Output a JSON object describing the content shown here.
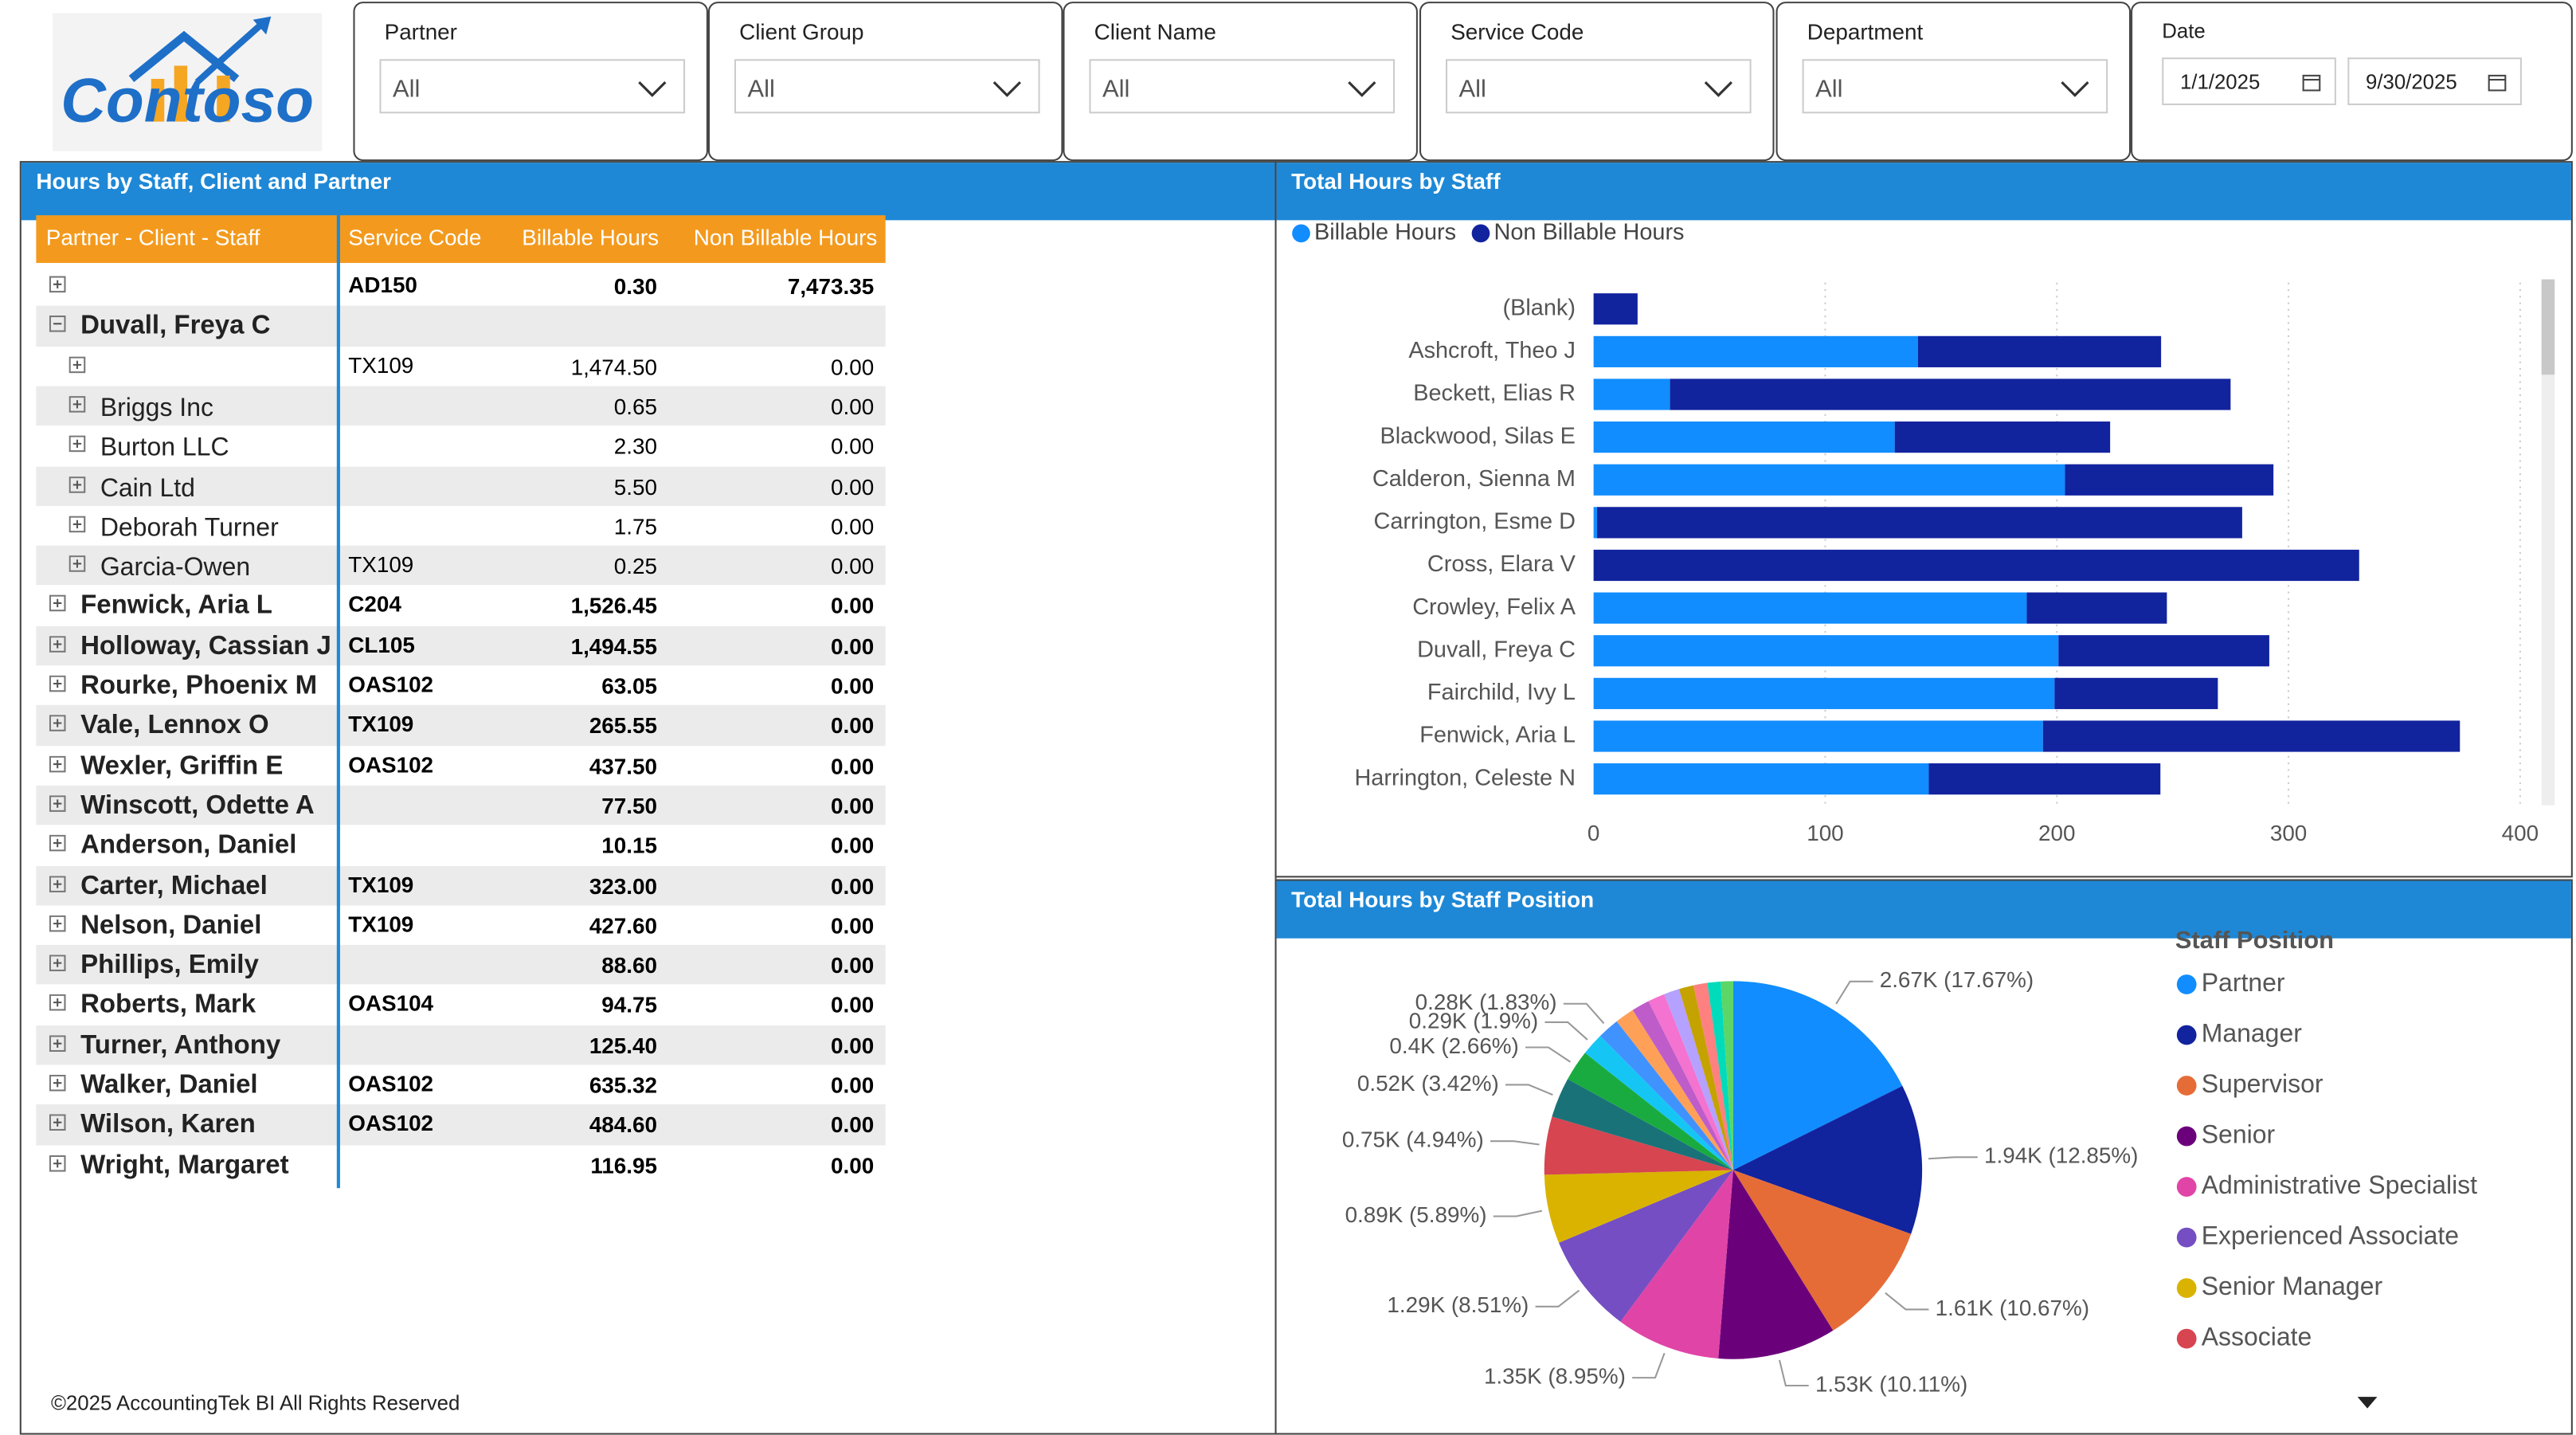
{
  "logo": "Contoso",
  "filters": [
    {
      "label": "Partner",
      "value": "All"
    },
    {
      "label": "Client Group",
      "value": "All"
    },
    {
      "label": "Client Name",
      "value": "All"
    },
    {
      "label": "Service Code",
      "value": "All"
    },
    {
      "label": "Department",
      "value": "All"
    }
  ],
  "date_filter": {
    "label": "Date",
    "start": "1/1/2025",
    "end": "9/30/2025"
  },
  "table": {
    "title": "Hours by Staff, Client and Partner",
    "columns": [
      "Partner - Client - Staff",
      "Service Code",
      "Billable Hours",
      "Non Billable Hours"
    ],
    "rows": [
      {
        "level": 0,
        "expanded": false,
        "service_code": "AD150",
        "billable": "0.30",
        "non_billable": "7,473.35"
      },
      {
        "level": 0,
        "expanded": true,
        "name": "Duvall, Freya C"
      },
      {
        "level": 1,
        "expanded": false,
        "service_code": "TX109",
        "billable": "1,474.50",
        "non_billable": "0.00"
      },
      {
        "level": 1,
        "expanded": false,
        "name": "Briggs Inc",
        "billable": "0.65",
        "non_billable": "0.00"
      },
      {
        "level": 1,
        "expanded": false,
        "name": "Burton LLC",
        "billable": "2.30",
        "non_billable": "0.00"
      },
      {
        "level": 1,
        "expanded": false,
        "name": "Cain Ltd",
        "billable": "5.50",
        "non_billable": "0.00"
      },
      {
        "level": 1,
        "expanded": false,
        "name": "Deborah Turner",
        "billable": "1.75",
        "non_billable": "0.00"
      },
      {
        "level": 1,
        "expanded": false,
        "name": "Garcia-Owen",
        "service_code": "TX109",
        "billable": "0.25",
        "non_billable": "0.00"
      },
      {
        "level": 0,
        "expanded": false,
        "name": "Fenwick, Aria L",
        "service_code": "C204",
        "billable": "1,526.45",
        "non_billable": "0.00"
      },
      {
        "level": 0,
        "expanded": false,
        "name": "Holloway, Cassian J",
        "service_code": "CL105",
        "billable": "1,494.55",
        "non_billable": "0.00"
      },
      {
        "level": 0,
        "expanded": false,
        "name": "Rourke, Phoenix M",
        "service_code": "OAS102",
        "billable": "63.05",
        "non_billable": "0.00"
      },
      {
        "level": 0,
        "expanded": false,
        "name": "Vale, Lennox O",
        "service_code": "TX109",
        "billable": "265.55",
        "non_billable": "0.00"
      },
      {
        "level": 0,
        "expanded": false,
        "name": "Wexler, Griffin E",
        "service_code": "OAS102",
        "billable": "437.50",
        "non_billable": "0.00"
      },
      {
        "level": 0,
        "expanded": false,
        "name": "Winscott, Odette A",
        "billable": "77.50",
        "non_billable": "0.00"
      },
      {
        "level": 0,
        "expanded": false,
        "name": "Anderson, Daniel",
        "billable": "10.15",
        "non_billable": "0.00"
      },
      {
        "level": 0,
        "expanded": false,
        "name": "Carter, Michael",
        "service_code": "TX109",
        "billable": "323.00",
        "non_billable": "0.00"
      },
      {
        "level": 0,
        "expanded": false,
        "name": "Nelson, Daniel",
        "service_code": "TX109",
        "billable": "427.60",
        "non_billable": "0.00"
      },
      {
        "level": 0,
        "expanded": false,
        "name": "Phillips, Emily",
        "billable": "88.60",
        "non_billable": "0.00"
      },
      {
        "level": 0,
        "expanded": false,
        "name": "Roberts, Mark",
        "service_code": "OAS104",
        "billable": "94.75",
        "non_billable": "0.00"
      },
      {
        "level": 0,
        "expanded": false,
        "name": "Turner, Anthony",
        "billable": "125.40",
        "non_billable": "0.00"
      },
      {
        "level": 0,
        "expanded": false,
        "name": "Walker, Daniel",
        "service_code": "OAS102",
        "billable": "635.32",
        "non_billable": "0.00"
      },
      {
        "level": 0,
        "expanded": false,
        "name": "Wilson, Karen",
        "service_code": "OAS102",
        "billable": "484.60",
        "non_billable": "0.00"
      },
      {
        "level": 0,
        "expanded": false,
        "name": "Wright, Margaret",
        "billable": "116.95",
        "non_billable": "0.00"
      }
    ]
  },
  "footer": "©2025 AccountingTek BI All Rights Reserved",
  "chart_data": [
    {
      "type": "bar",
      "orientation": "horizontal",
      "stacked": true,
      "title": "Total Hours by Staff",
      "categories": [
        "(Blank)",
        "Ashcroft, Theo J",
        "Beckett, Elias R",
        "Blackwood, Silas E",
        "Calderon, Sienna M",
        "Carrington, Esme D",
        "Cross, Elara V",
        "Crowley, Felix A",
        "Duvall, Freya C",
        "Fairchild, Ivy L",
        "Fenwick, Aria L",
        "Harrington, Celeste N"
      ],
      "series": [
        {
          "name": "Billable Hours",
          "color": "#118DFF",
          "values": [
            0,
            140,
            33,
            130,
            203.5,
            1.5,
            0,
            187,
            200.7,
            199,
            194,
            144.7
          ]
        },
        {
          "name": "Non Billable Hours",
          "color": "#12239E",
          "values": [
            19,
            105,
            242,
            93,
            90,
            278.5,
            330.5,
            60.5,
            91,
            70.5,
            180,
            100
          ]
        }
      ],
      "xlim": [
        0,
        400
      ],
      "xticks": [
        0,
        100,
        200,
        300,
        400
      ],
      "grid": true,
      "legend": "top-left"
    },
    {
      "type": "pie",
      "title": "Total Hours by Staff Position",
      "legend_title": "Staff Position",
      "categories": [
        "Partner",
        "Manager",
        "Supervisor",
        "Senior",
        "Administrative Specialist",
        "Experienced Associate",
        "Senior Manager",
        "Associate",
        null,
        null,
        null,
        null,
        null,
        null,
        null,
        null,
        null,
        null,
        null,
        null
      ],
      "values": [
        2670,
        1940,
        1610,
        1530,
        1350,
        1290,
        890,
        750,
        520,
        400,
        290,
        280,
        250,
        230,
        220,
        200,
        190,
        180,
        170,
        160
      ],
      "value_labels": [
        "2.67K (17.67%)",
        "1.94K (12.85%)",
        "1.61K (10.67%)",
        "1.53K (10.11%)",
        "1.35K (8.95%)",
        "1.29K (8.51%)",
        "0.89K (5.89%)",
        "0.75K (4.94%)",
        "0.52K (3.42%)",
        "0.4K (2.66%)",
        "0.29K (1.9%)",
        "0.28K (1.83%)",
        null,
        null,
        null,
        null,
        null,
        null,
        null,
        null
      ],
      "colors": [
        "#118DFF",
        "#12239E",
        "#E66C37",
        "#6B007B",
        "#E044A7",
        "#744EC2",
        "#D9B300",
        "#D64550",
        "#197278",
        "#1AAB40",
        "#15C6F4",
        "#4092FF",
        "#FFA058",
        "#BE5DC9",
        "#F472D0",
        "#B5A1FF",
        "#C4A200",
        "#FF8080",
        "#00DBBC",
        "#5BD667"
      ],
      "legend": "right"
    }
  ]
}
